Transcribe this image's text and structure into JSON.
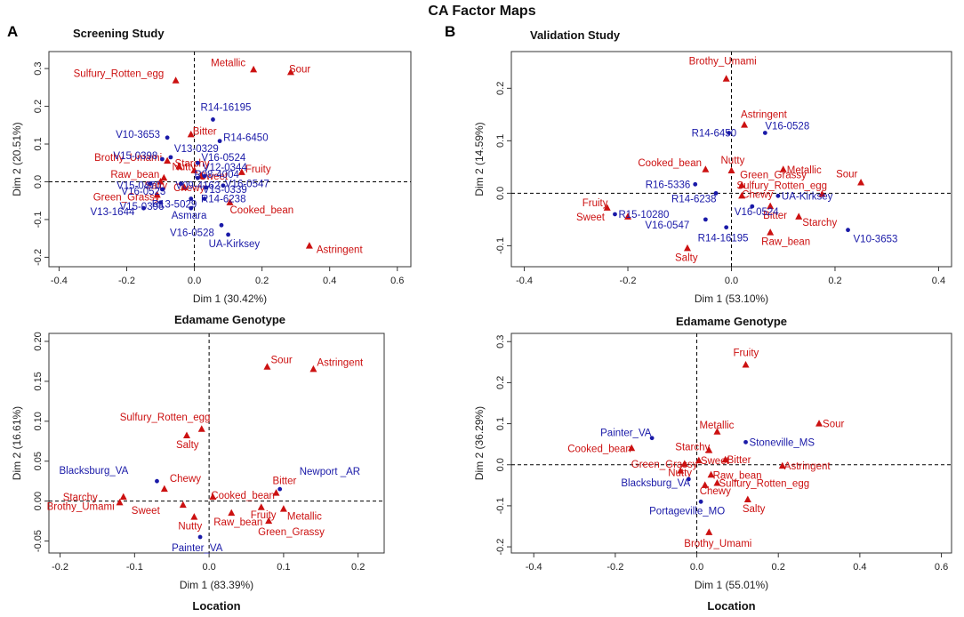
{
  "page": {
    "title": "CA Factor Maps",
    "panel_a": "A",
    "panel_b": "B",
    "screening_title": "Screening Study",
    "validation_title": "Validation Study",
    "colors": {
      "attribute": "#cc1111",
      "sample": "#1a1aa8",
      "axis": "#333333"
    }
  },
  "chart_data": [
    {
      "id": "screening-genotype",
      "type": "scatter",
      "title": "Screening Study",
      "xlabel": "Dim 1 (30.42%)",
      "ylabel": "Dim 2 (20.51%)",
      "caption": "Edamame Genotype",
      "xlim": [
        -0.43,
        0.64
      ],
      "ylim": [
        -0.225,
        0.345
      ],
      "xticks": [
        -0.4,
        -0.2,
        0.0,
        0.2,
        0.4,
        0.6
      ],
      "xtick_labels": [
        "-0.4",
        "-0.2",
        "0.0",
        "0.2",
        "0.4",
        "0.6"
      ],
      "yticks": [
        -0.2,
        -0.1,
        0.0,
        0.1,
        0.2,
        0.3
      ],
      "ytick_labels": [
        "-0.2",
        "-0.1",
        "0.0",
        "0.1",
        "0.2",
        "0.3"
      ],
      "series": [
        {
          "name": "attributes",
          "marker": "triangle",
          "color": "#cc1111",
          "points": [
            {
              "label": "Sulfury_Rotten_egg",
              "x": -0.055,
              "y": 0.268
            },
            {
              "label": "Metallic",
              "x": 0.175,
              "y": 0.297
            },
            {
              "label": "Sour",
              "x": 0.285,
              "y": 0.29
            },
            {
              "label": "Bitter",
              "x": -0.01,
              "y": 0.125
            },
            {
              "label": "Brothy_Umami",
              "x": -0.08,
              "y": 0.055
            },
            {
              "label": "Nutty",
              "x": -0.045,
              "y": 0.04
            },
            {
              "label": "Raw_bean",
              "x": -0.09,
              "y": 0.01
            },
            {
              "label": "Salty",
              "x": -0.1,
              "y": 0.0
            },
            {
              "label": "Chewy",
              "x": -0.03,
              "y": -0.015
            },
            {
              "label": "Green_Grassy",
              "x": -0.11,
              "y": -0.035
            },
            {
              "label": "Fruity",
              "x": 0.14,
              "y": 0.025
            },
            {
              "label": "Cooked_bean",
              "x": 0.105,
              "y": -0.055
            },
            {
              "label": "Astringent",
              "x": 0.34,
              "y": -0.17
            },
            {
              "label": "Sweet",
              "x": 0.02,
              "y": 0.015
            },
            {
              "label": "Starchy",
              "x": 0.0,
              "y": 0.03
            }
          ]
        },
        {
          "name": "genotypes",
          "marker": "dot",
          "color": "#1a1aa8",
          "points": [
            {
              "label": "R14-16195",
              "x": 0.055,
              "y": 0.165
            },
            {
              "label": "R14-6450",
              "x": 0.075,
              "y": 0.108
            },
            {
              "label": "V10-3653",
              "x": -0.08,
              "y": 0.117
            },
            {
              "label": "V15-0398",
              "x": -0.095,
              "y": 0.06
            },
            {
              "label": "V13-0329",
              "x": -0.07,
              "y": 0.065
            },
            {
              "label": "V16-0524",
              "x": 0.01,
              "y": 0.05
            },
            {
              "label": "R08-4004",
              "x": 0.01,
              "y": 0.01
            },
            {
              "label": "V12-0344",
              "x": 0.03,
              "y": 0.015
            },
            {
              "label": "V15-0470",
              "x": -0.13,
              "y": -0.005
            },
            {
              "label": "V16-0523",
              "x": -0.095,
              "y": -0.02
            },
            {
              "label": "V09-4162",
              "x": -0.04,
              "y": -0.005
            },
            {
              "label": "V13-0339",
              "x": 0.035,
              "y": -0.015
            },
            {
              "label": "V16-0547",
              "x": 0.085,
              "y": -0.01
            },
            {
              "label": "R13-5029",
              "x": -0.01,
              "y": -0.045
            },
            {
              "label": "R14-6238",
              "x": 0.03,
              "y": -0.045
            },
            {
              "label": "V15-0396",
              "x": -0.1,
              "y": -0.055
            },
            {
              "label": "V13-1644",
              "x": -0.15,
              "y": -0.07
            },
            {
              "label": "Asmara",
              "x": -0.01,
              "y": -0.07
            },
            {
              "label": "V16-0528",
              "x": 0.08,
              "y": -0.115
            },
            {
              "label": "UA-Kirksey",
              "x": 0.1,
              "y": -0.14
            }
          ]
        }
      ]
    },
    {
      "id": "screening-location",
      "type": "scatter",
      "title": "",
      "xlabel": "Dim 1 (83.39%)",
      "ylabel": "Dim 2 (16.61%)",
      "caption": "Location",
      "xlim": [
        -0.215,
        0.235
      ],
      "ylim": [
        -0.065,
        0.21
      ],
      "xticks": [
        -0.2,
        -0.1,
        0.0,
        0.1,
        0.2
      ],
      "xtick_labels": [
        "-0.2",
        "-0.1",
        "0.0",
        "0.1",
        "0.2"
      ],
      "yticks": [
        -0.05,
        0.0,
        0.05,
        0.1,
        0.15,
        0.2
      ],
      "ytick_labels": [
        "-0.05",
        "0.00",
        "0.05",
        "0.10",
        "0.15",
        "0.20"
      ],
      "series": [
        {
          "name": "attributes",
          "marker": "triangle",
          "color": "#cc1111",
          "points": [
            {
              "label": "Sour",
              "x": 0.078,
              "y": 0.168
            },
            {
              "label": "Astringent",
              "x": 0.14,
              "y": 0.165
            },
            {
              "label": "Sulfury_Rotten_egg",
              "x": -0.01,
              "y": 0.09
            },
            {
              "label": "Salty",
              "x": -0.03,
              "y": 0.082
            },
            {
              "label": "Chewy",
              "x": -0.06,
              "y": 0.015
            },
            {
              "label": "Starchy",
              "x": -0.115,
              "y": 0.005
            },
            {
              "label": "Brothy_Umami",
              "x": -0.12,
              "y": -0.002
            },
            {
              "label": "Cooked_bean",
              "x": 0.005,
              "y": 0.005
            },
            {
              "label": "Bitter",
              "x": 0.09,
              "y": 0.01
            },
            {
              "label": "Sweet",
              "x": -0.035,
              "y": -0.005
            },
            {
              "label": "Raw_bean",
              "x": 0.03,
              "y": -0.015
            },
            {
              "label": "Fruity",
              "x": 0.07,
              "y": -0.008
            },
            {
              "label": "Metallic",
              "x": 0.1,
              "y": -0.01
            },
            {
              "label": "Nutty",
              "x": -0.02,
              "y": -0.02
            },
            {
              "label": "Green_Grassy",
              "x": 0.08,
              "y": -0.025
            }
          ]
        },
        {
          "name": "locations",
          "marker": "dot",
          "color": "#1a1aa8",
          "points": [
            {
              "label": "Blacksburg_VA",
              "x": -0.07,
              "y": 0.025
            },
            {
              "label": "Newport _AR",
              "x": 0.095,
              "y": 0.015
            },
            {
              "label": "Painter_VA",
              "x": -0.012,
              "y": -0.045
            }
          ]
        }
      ]
    },
    {
      "id": "validation-genotype",
      "type": "scatter",
      "title": "Validation Study",
      "xlabel": "Dim 1 (53.10%)",
      "ylabel": "Dim 2 (14.59%)",
      "caption": "Edamame Genotype",
      "xlim": [
        -0.425,
        0.425
      ],
      "ylim": [
        -0.14,
        0.27
      ],
      "xticks": [
        -0.4,
        -0.2,
        0.0,
        0.2,
        0.4
      ],
      "xtick_labels": [
        "-0.4",
        "-0.2",
        "0.0",
        "0.2",
        "0.4"
      ],
      "yticks": [
        -0.1,
        0.0,
        0.1,
        0.2
      ],
      "ytick_labels": [
        "-0.1",
        "0.0",
        "0.1",
        "0.2"
      ],
      "series": [
        {
          "name": "attributes",
          "marker": "triangle",
          "color": "#cc1111",
          "points": [
            {
              "label": "Brothy_Umami",
              "x": -0.01,
              "y": 0.218
            },
            {
              "label": "Astringent",
              "x": 0.025,
              "y": 0.13
            },
            {
              "label": "Nutty",
              "x": 0.0,
              "y": 0.043
            },
            {
              "label": "Cooked_bean",
              "x": -0.05,
              "y": 0.045
            },
            {
              "label": "Metallic",
              "x": 0.1,
              "y": 0.045
            },
            {
              "label": "Sour",
              "x": 0.25,
              "y": 0.02
            },
            {
              "label": "Green_Grassy",
              "x": 0.02,
              "y": 0.015
            },
            {
              "label": "Sulfury_Rotten_egg",
              "x": 0.175,
              "y": -0.002
            },
            {
              "label": "Chewy",
              "x": 0.02,
              "y": -0.005
            },
            {
              "label": "Bitter",
              "x": 0.075,
              "y": -0.025
            },
            {
              "label": "Starchy",
              "x": 0.13,
              "y": -0.045
            },
            {
              "label": "Fruity",
              "x": -0.24,
              "y": -0.028
            },
            {
              "label": "Sweet",
              "x": -0.2,
              "y": -0.045
            },
            {
              "label": "Raw_bean",
              "x": 0.075,
              "y": -0.075
            },
            {
              "label": "Salty",
              "x": -0.085,
              "y": -0.105
            }
          ]
        },
        {
          "name": "genotypes",
          "marker": "dot",
          "color": "#1a1aa8",
          "points": [
            {
              "label": "R14-6450",
              "x": -0.005,
              "y": 0.115
            },
            {
              "label": "V16-0528",
              "x": 0.065,
              "y": 0.115
            },
            {
              "label": "R16-5336",
              "x": -0.07,
              "y": 0.017
            },
            {
              "label": "UA-Kirksey",
              "x": 0.09,
              "y": -0.005
            },
            {
              "label": "R14-6238",
              "x": -0.03,
              "y": 0.0
            },
            {
              "label": "V16-0524",
              "x": 0.04,
              "y": -0.025
            },
            {
              "label": "R15-10280",
              "x": -0.225,
              "y": -0.04
            },
            {
              "label": "V16-0547",
              "x": -0.05,
              "y": -0.05
            },
            {
              "label": "R14-16195",
              "x": -0.01,
              "y": -0.065
            },
            {
              "label": "V10-3653",
              "x": 0.225,
              "y": -0.07
            }
          ]
        }
      ]
    },
    {
      "id": "validation-location",
      "type": "scatter",
      "title": "",
      "xlabel": "Dim 1 (55.01%)",
      "ylabel": "Dim 2 (36.29%)",
      "caption": "Location",
      "xlim": [
        -0.455,
        0.625
      ],
      "ylim": [
        -0.215,
        0.32
      ],
      "xticks": [
        -0.4,
        -0.2,
        0.0,
        0.2,
        0.4,
        0.6
      ],
      "xtick_labels": [
        "-0.4",
        "-0.2",
        "0.0",
        "0.2",
        "0.4",
        "0.6"
      ],
      "yticks": [
        -0.2,
        -0.1,
        0.0,
        0.1,
        0.2,
        0.3
      ],
      "ytick_labels": [
        "-0.2",
        "-0.1",
        "0.0",
        "0.1",
        "0.2",
        "0.3"
      ],
      "series": [
        {
          "name": "attributes",
          "marker": "triangle",
          "color": "#cc1111",
          "points": [
            {
              "label": "Fruity",
              "x": 0.12,
              "y": 0.243
            },
            {
              "label": "Sour",
              "x": 0.3,
              "y": 0.1
            },
            {
              "label": "Metallic",
              "x": 0.05,
              "y": 0.08
            },
            {
              "label": "Cooked_bean",
              "x": -0.16,
              "y": 0.04
            },
            {
              "label": "Starchy",
              "x": 0.03,
              "y": 0.035
            },
            {
              "label": "Bitter",
              "x": 0.07,
              "y": 0.012
            },
            {
              "label": "Sweet",
              "x": 0.005,
              "y": 0.01
            },
            {
              "label": "Green_Grassy",
              "x": -0.03,
              "y": 0.002
            },
            {
              "label": "Astringent",
              "x": 0.21,
              "y": -0.003
            },
            {
              "label": "Nutty",
              "x": -0.04,
              "y": -0.015
            },
            {
              "label": "Raw_bean",
              "x": 0.035,
              "y": -0.025
            },
            {
              "label": "Sulfury_Rotten_egg",
              "x": 0.05,
              "y": -0.045
            },
            {
              "label": "Chewy",
              "x": 0.02,
              "y": -0.05
            },
            {
              "label": "Salty",
              "x": 0.125,
              "y": -0.085
            },
            {
              "label": "Brothy_Umami",
              "x": 0.03,
              "y": -0.165
            }
          ]
        },
        {
          "name": "locations",
          "marker": "dot",
          "color": "#1a1aa8",
          "points": [
            {
              "label": "Painter_VA",
              "x": -0.11,
              "y": 0.065
            },
            {
              "label": "Stoneville_MS",
              "x": 0.12,
              "y": 0.055
            },
            {
              "label": "Blacksburg_VA",
              "x": -0.02,
              "y": -0.035
            },
            {
              "label": "Portageville_MO",
              "x": 0.01,
              "y": -0.09
            }
          ]
        }
      ]
    }
  ]
}
